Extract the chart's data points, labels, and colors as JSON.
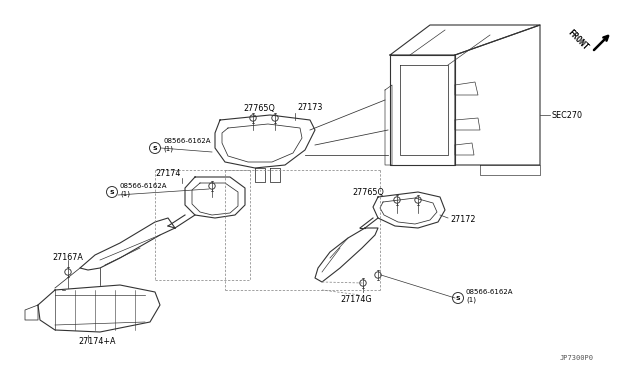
{
  "bg_color": "#ffffff",
  "fig_width": 6.4,
  "fig_height": 3.72,
  "dpi": 100,
  "diagram_code": "JP7300P0",
  "front_label": "FRONT",
  "line_color": "#333333",
  "text_color": "#000000",
  "label_fontsize": 5.8,
  "small_fontsize": 5.0,
  "parts": {
    "27173": "27173",
    "27172": "27172",
    "27174": "27174",
    "27174A": "27174+A",
    "27174G": "27174G",
    "27167A": "27167A",
    "27765Q": "27765Q",
    "08566": "08566-6162A\n(1)",
    "SEC270": "SEC270"
  }
}
